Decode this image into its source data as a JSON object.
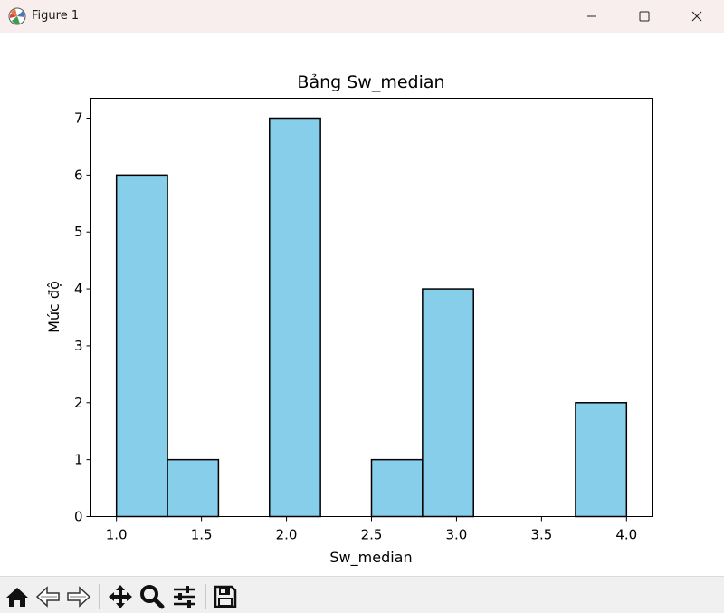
{
  "window": {
    "title": "Figure 1",
    "icons": {
      "app": "matplotlib-figure-icon",
      "minimize": "minimize-icon",
      "maximize": "maximize-icon",
      "close": "close-icon"
    }
  },
  "toolbar": {
    "buttons": [
      {
        "name": "home-button",
        "icon": "home-icon"
      },
      {
        "name": "back-button",
        "icon": "arrow-left-icon"
      },
      {
        "name": "forward-button",
        "icon": "arrow-right-icon"
      },
      {
        "name": "pan-button",
        "icon": "move-icon"
      },
      {
        "name": "zoom-button",
        "icon": "zoom-icon"
      },
      {
        "name": "configure-subplots-button",
        "icon": "sliders-icon"
      },
      {
        "name": "save-button",
        "icon": "floppy-disk-icon"
      }
    ]
  },
  "chart_data": {
    "type": "bar",
    "title": "Bảng Sw_median",
    "xlabel": "Sw_median",
    "ylabel": "Mức độ",
    "bin_edges": [
      1.0,
      1.3,
      1.6,
      1.9,
      2.2,
      2.5,
      2.8,
      3.1,
      3.4,
      3.7,
      4.0
    ],
    "values": [
      6,
      1,
      0,
      7,
      0,
      1,
      4,
      0,
      0,
      2
    ],
    "xlim": [
      0.85,
      4.15
    ],
    "ylim": [
      0,
      7.35
    ],
    "xticks": [
      "1.0",
      "1.5",
      "2.0",
      "2.5",
      "3.0",
      "3.5",
      "4.0"
    ],
    "yticks": [
      "0",
      "1",
      "2",
      "3",
      "4",
      "5",
      "6",
      "7"
    ],
    "bar_color": "#87ceeb",
    "edge_color": "#000000",
    "grid": false,
    "legend": false
  }
}
